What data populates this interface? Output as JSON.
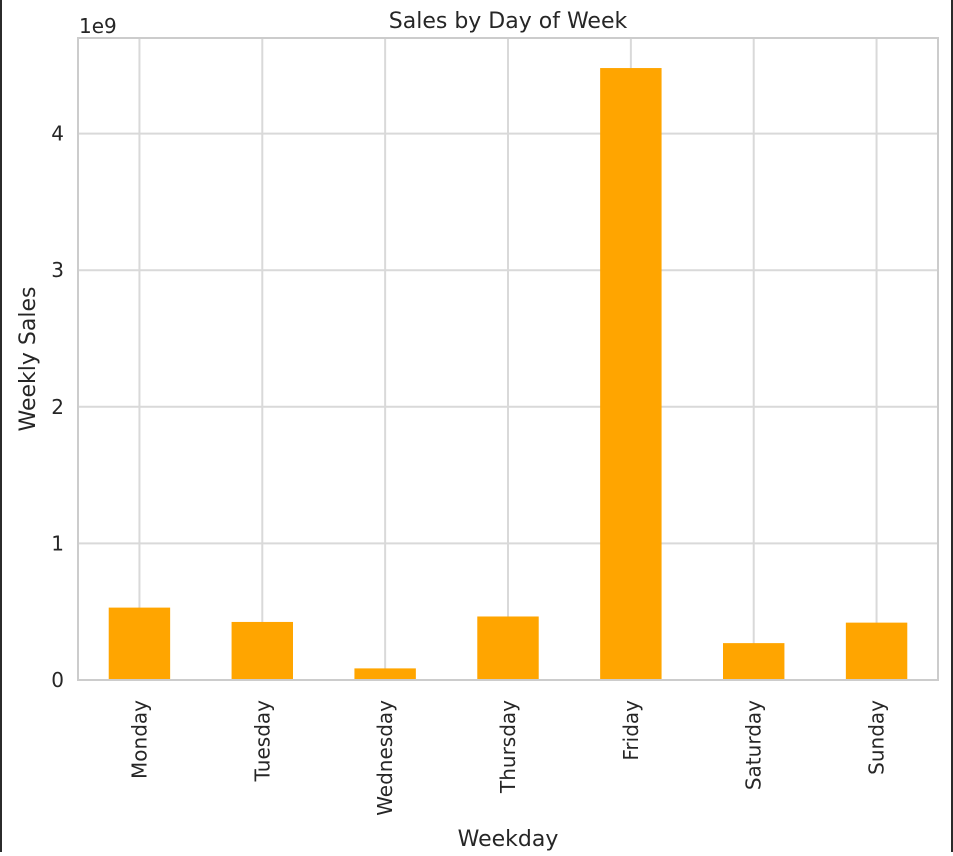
{
  "chart_data": {
    "type": "bar",
    "title": "Sales by Day of Week",
    "xlabel": "Weekday",
    "ylabel": "Weekly Sales",
    "y_offset_label": "1e9",
    "categories": [
      "Monday",
      "Tuesday",
      "Wednesday",
      "Thursday",
      "Friday",
      "Saturday",
      "Sunday"
    ],
    "values": [
      530000000,
      425000000,
      85000000,
      465000000,
      4480000000,
      270000000,
      420000000
    ],
    "yticks": [
      0,
      1,
      2,
      3,
      4
    ],
    "ylim": [
      0,
      4.7
    ],
    "grid": true,
    "bar_color": "#FFA500",
    "grid_color": "#D9D9D9",
    "axis_color": "#CCCCCC"
  }
}
